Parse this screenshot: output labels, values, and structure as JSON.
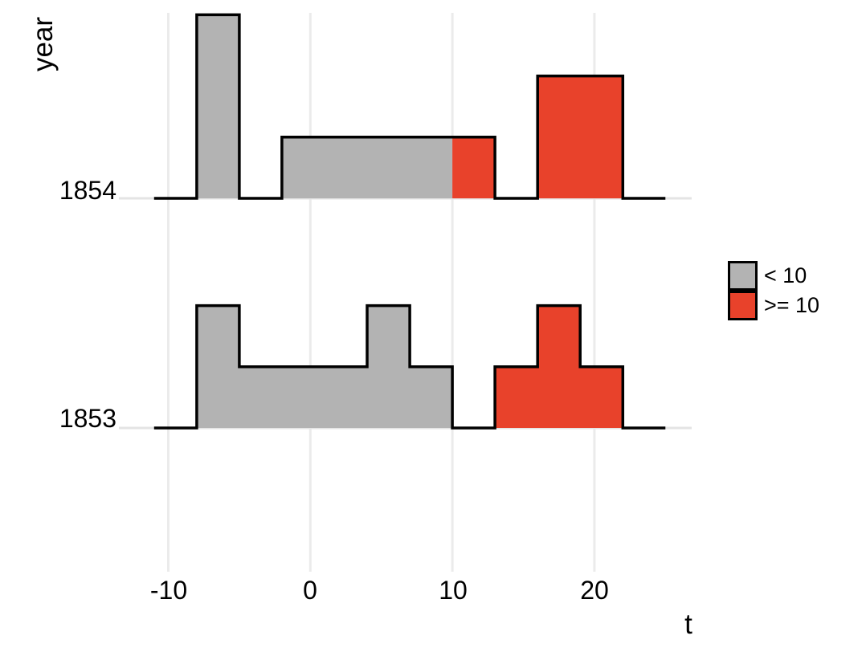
{
  "chart_data": {
    "type": "bar",
    "variant": "ridgeline-histogram",
    "title": "",
    "xlabel": "t",
    "ylabel": "year",
    "categories": [
      "1854",
      "1853"
    ],
    "x_ticks": [
      {
        "value": -10,
        "label": "-10"
      },
      {
        "value": 0,
        "label": "0"
      },
      {
        "value": 10,
        "label": "10"
      },
      {
        "value": 20,
        "label": "20"
      }
    ],
    "xlim": [
      -13.5,
      26.9
    ],
    "bin_width": 3,
    "bin_edges": [
      -11,
      -8,
      -5,
      -2,
      1,
      4,
      7,
      10,
      13,
      16,
      19,
      22,
      25
    ],
    "series": [
      {
        "name": "1854",
        "counts": [
          0,
          3,
          0,
          1,
          1,
          1,
          1,
          1,
          0,
          2,
          2,
          0
        ]
      },
      {
        "name": "1853",
        "counts": [
          0,
          2,
          1,
          1,
          1,
          2,
          1,
          0,
          1,
          2,
          1,
          0
        ]
      }
    ],
    "color_threshold": 10,
    "legend": [
      {
        "label": "< 10",
        "color": "#B3B3B3"
      },
      {
        "label": ">= 10",
        "color": "#E8422B"
      }
    ],
    "legend_position": "right",
    "grid": "vertical major gridlines only",
    "colors": {
      "below_threshold": "#B3B3B3",
      "above_threshold": "#E8422B",
      "outline": "#000000",
      "gridline": "#EBEBEB",
      "row_baseline": "#E4E4E4",
      "text": "#000000",
      "background": "#FFFFFF"
    }
  }
}
